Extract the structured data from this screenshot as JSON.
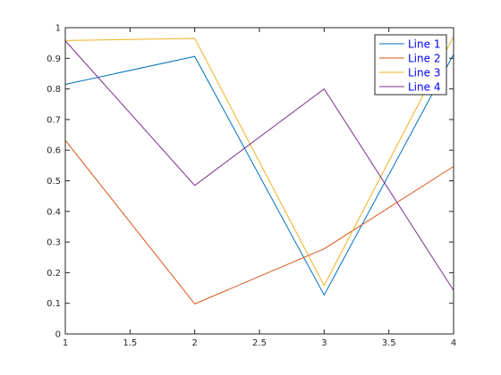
{
  "chart_data": {
    "type": "line",
    "title": "",
    "xlabel": "",
    "ylabel": "",
    "xlim": [
      1,
      4
    ],
    "ylim": [
      0,
      1
    ],
    "grid": false,
    "legend_position": "top-right",
    "x_ticks": [
      "1",
      "1.5",
      "2",
      "2.5",
      "3",
      "3.5",
      "4"
    ],
    "y_ticks": [
      "0",
      "0.1",
      "0.2",
      "0.3",
      "0.4",
      "0.5",
      "0.6",
      "0.7",
      "0.8",
      "0.9",
      "1"
    ],
    "x": [
      1,
      2,
      3,
      4
    ],
    "series": [
      {
        "name": "Line 1",
        "color": "#0072BD",
        "values": [
          0.815,
          0.906,
          0.127,
          0.913
        ]
      },
      {
        "name": "Line 2",
        "color": "#D95319",
        "values": [
          0.632,
          0.098,
          0.278,
          0.547
        ]
      },
      {
        "name": "Line 3",
        "color": "#EDB120",
        "values": [
          0.958,
          0.965,
          0.158,
          0.971
        ]
      },
      {
        "name": "Line 4",
        "color": "#7E2F8E",
        "values": [
          0.957,
          0.485,
          0.8,
          0.142
        ]
      }
    ]
  }
}
